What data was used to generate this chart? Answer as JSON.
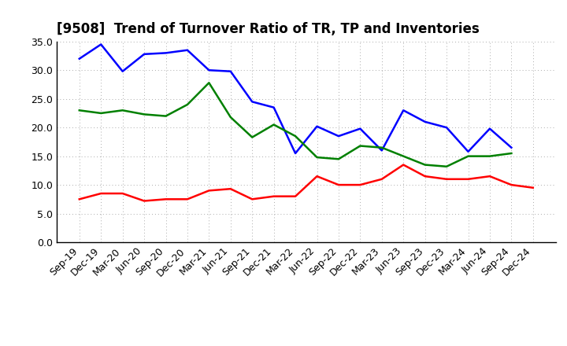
{
  "title": "[9508]  Trend of Turnover Ratio of TR, TP and Inventories",
  "labels": [
    "Sep-19",
    "Dec-19",
    "Mar-20",
    "Jun-20",
    "Sep-20",
    "Dec-20",
    "Mar-21",
    "Jun-21",
    "Sep-21",
    "Dec-21",
    "Mar-22",
    "Jun-22",
    "Sep-22",
    "Dec-22",
    "Mar-23",
    "Jun-23",
    "Sep-23",
    "Dec-23",
    "Mar-24",
    "Jun-24",
    "Sep-24",
    "Dec-24"
  ],
  "trade_receivables": [
    7.5,
    8.5,
    8.5,
    7.2,
    7.5,
    7.5,
    9.0,
    9.3,
    7.5,
    8.0,
    8.0,
    11.5,
    10.0,
    10.0,
    11.0,
    13.5,
    11.5,
    11.0,
    11.0,
    11.5,
    10.0,
    9.5
  ],
  "trade_payables": [
    32.0,
    34.5,
    29.8,
    32.8,
    33.0,
    33.5,
    30.0,
    29.8,
    24.5,
    23.5,
    15.5,
    20.2,
    18.5,
    19.8,
    16.0,
    23.0,
    21.0,
    20.0,
    15.8,
    19.8,
    16.5,
    null
  ],
  "inventories": [
    23.0,
    22.5,
    23.0,
    22.3,
    22.0,
    24.0,
    27.8,
    21.8,
    18.3,
    20.5,
    18.5,
    14.8,
    14.5,
    16.8,
    16.5,
    15.0,
    13.5,
    13.2,
    15.0,
    15.0,
    15.5,
    null
  ],
  "color_tr": "#ff0000",
  "color_tp": "#0000ff",
  "color_inv": "#008000",
  "ylim": [
    0,
    35
  ],
  "yticks": [
    0.0,
    5.0,
    10.0,
    15.0,
    20.0,
    25.0,
    30.0,
    35.0
  ],
  "linewidth": 1.8,
  "background_color": "#ffffff",
  "grid_color": "#aaaaaa",
  "title_fontsize": 12,
  "tick_fontsize": 9,
  "legend_fontsize": 9
}
